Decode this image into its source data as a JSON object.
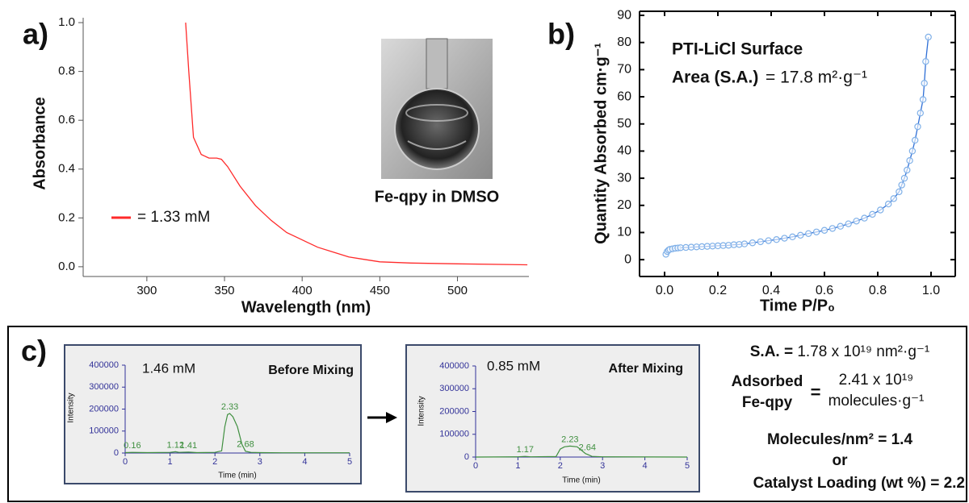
{
  "chart_data": [
    {
      "type": "line",
      "panel_label": "a)",
      "xlabel": "Wavelength (nm)",
      "ylabel": "Absorbance",
      "x": [
        325,
        327,
        330,
        335,
        340,
        345,
        348,
        352,
        360,
        370,
        380,
        390,
        400,
        410,
        420,
        430,
        440,
        450,
        470,
        500,
        545
      ],
      "series": [
        {
          "name": "= 1.33 mM",
          "color": "#ff2a2a",
          "values": [
            1.0,
            0.8,
            0.53,
            0.46,
            0.445,
            0.445,
            0.44,
            0.41,
            0.33,
            0.25,
            0.19,
            0.14,
            0.11,
            0.08,
            0.06,
            0.04,
            0.03,
            0.02,
            0.015,
            0.012,
            0.008
          ]
        }
      ],
      "xlim": [
        259,
        546
      ],
      "xticks": [
        300,
        350,
        400,
        450,
        500
      ],
      "ylim": [
        -0.04,
        1.02
      ],
      "yticks": [
        {
          "value": 0,
          "label": "0.0"
        },
        0.2,
        0.4,
        0.6,
        0.8,
        {
          "value": 1,
          "label": "1.0"
        }
      ],
      "inset_caption": "Fe-qpy in DMSO"
    },
    {
      "type": "scatter",
      "panel_label": "b)",
      "xlabel": "Time P/P₀",
      "ylabel": "Quantity Absorbed cm·g⁻¹",
      "annotations": [
        "PTI-LiCl Surface",
        "Area (S.A.)",
        "= 17.8 m²·g⁻¹"
      ],
      "color": "#7fb0e8",
      "line_color": "#2f6fd6",
      "x": [
        0.005,
        0.01,
        0.015,
        0.02,
        0.03,
        0.04,
        0.05,
        0.06,
        0.08,
        0.1,
        0.12,
        0.14,
        0.16,
        0.18,
        0.2,
        0.22,
        0.24,
        0.26,
        0.28,
        0.3,
        0.33,
        0.36,
        0.39,
        0.42,
        0.45,
        0.48,
        0.51,
        0.54,
        0.57,
        0.6,
        0.63,
        0.66,
        0.69,
        0.72,
        0.75,
        0.78,
        0.81,
        0.84,
        0.86,
        0.88,
        0.89,
        0.9,
        0.91,
        0.92,
        0.93,
        0.94,
        0.95,
        0.96,
        0.97,
        0.975,
        0.98,
        0.99
      ],
      "values": [
        2,
        3,
        3.5,
        3.8,
        4,
        4.2,
        4.3,
        4.4,
        4.5,
        4.6,
        4.7,
        4.8,
        4.9,
        5.0,
        5.1,
        5.2,
        5.3,
        5.5,
        5.6,
        5.8,
        6.2,
        6.6,
        7,
        7.4,
        7.9,
        8.4,
        9,
        9.6,
        10.2,
        10.8,
        11.5,
        12.3,
        13.2,
        14.2,
        15.3,
        16.7,
        18.3,
        20.5,
        22.5,
        25,
        27.5,
        30,
        33,
        36.5,
        40,
        44,
        49,
        54,
        59,
        65,
        73,
        82
      ],
      "xlim": [
        -0.094,
        1.091
      ],
      "xticks": [
        {
          "value": 0,
          "label": "0.0"
        },
        0.2,
        0.4,
        0.6,
        0.8,
        {
          "value": 1,
          "label": "1.0"
        }
      ],
      "ylim": [
        -6.2,
        91.5
      ],
      "yticks": [
        0,
        10,
        20,
        30,
        40,
        50,
        60,
        70,
        80,
        90
      ]
    },
    {
      "type": "line",
      "panel_label": "c)",
      "title": "Before Mixing",
      "annotation": "1.46 mM",
      "xlabel": "Time (min)",
      "ylabel": "Intensity",
      "color": "#3f8f3f",
      "x": [
        0,
        0.16,
        0.5,
        1.0,
        1.12,
        1.2,
        1.41,
        1.6,
        2.0,
        2.15,
        2.22,
        2.28,
        2.33,
        2.4,
        2.5,
        2.6,
        2.68,
        2.8,
        3.0,
        3.5,
        5
      ],
      "values": [
        2000,
        3000,
        2000,
        3000,
        6000,
        3000,
        4000,
        2000,
        3000,
        10000,
        120000,
        175000,
        180000,
        165000,
        120000,
        40000,
        8000,
        3000,
        2000,
        1000,
        1000
      ],
      "peaks": [
        0.16,
        1.12,
        1.41,
        2.33,
        2.68
      ],
      "xlim": [
        0,
        5
      ],
      "xticks": [
        0,
        1,
        2,
        3,
        4,
        5
      ],
      "ylim": [
        0,
        400000
      ],
      "yticks": [
        0,
        100000,
        200000,
        300000,
        400000
      ]
    },
    {
      "type": "line",
      "title": "After Mixing",
      "annotation": "0.85 mM",
      "xlabel": "Time (min)",
      "ylabel": "Intensity",
      "color": "#3f8f3f",
      "x": [
        0,
        1.0,
        1.17,
        1.3,
        1.9,
        2.0,
        2.1,
        2.23,
        2.4,
        2.5,
        2.6,
        2.64,
        2.75,
        3,
        5
      ],
      "values": [
        0,
        1000,
        3000,
        1000,
        2000,
        35000,
        45000,
        48000,
        45000,
        30000,
        15000,
        12000,
        3000,
        1000,
        0
      ],
      "peaks": [
        1.17,
        2.23,
        2.64
      ],
      "xlim": [
        0,
        5
      ],
      "xticks": [
        0,
        1,
        2,
        3,
        4,
        5
      ],
      "ylim": [
        0,
        400000
      ],
      "yticks": [
        0,
        100000,
        200000,
        300000,
        400000
      ]
    }
  ],
  "summary": {
    "surface_area": {
      "label": "S.A. =",
      "value": "1.78 x 10¹⁹ nm²·g⁻¹"
    },
    "adsorbed": {
      "label": [
        "Adsorbed",
        "Fe-qpy"
      ],
      "equals": "=",
      "value": [
        "2.41 x 10¹⁹",
        "molecules·g⁻¹"
      ]
    },
    "density": {
      "label": "Molecules/nm² =",
      "value": 1.4
    },
    "conjunction": "or",
    "loading": {
      "label": "Catalyst Loading (wt %) =",
      "value": 2.2
    }
  }
}
